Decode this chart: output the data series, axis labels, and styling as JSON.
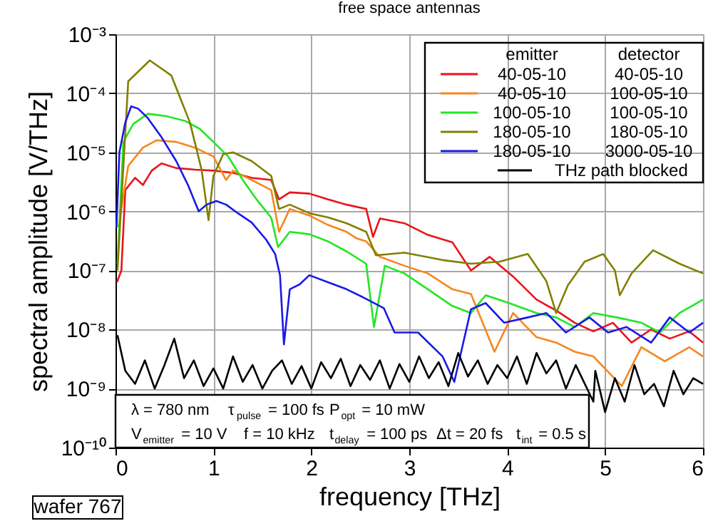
{
  "chart_data": {
    "type": "line",
    "title": "free space antennas",
    "xlabel": "frequency [THz]",
    "ylabel": "spectral amplitude [V/THz]",
    "legend_title": [
      "emitter",
      "detector"
    ],
    "log": "y",
    "grid": true,
    "legend": "top right",
    "line_style": "solid",
    "marker": "none",
    "xlim": [
      0,
      6
    ],
    "xticks": [
      0,
      1,
      2,
      3,
      4,
      5,
      6
    ],
    "ylim": [
      1e-10,
      0.001
    ],
    "yticks": [
      {
        "value": 1e-10,
        "label": "10⁻¹⁰"
      },
      {
        "value": 1e-09,
        "label": "10⁻⁹"
      },
      {
        "value": 1e-08,
        "label": "10⁻⁸"
      },
      {
        "value": 1e-07,
        "label": "10⁻⁷"
      },
      {
        "value": 1e-06,
        "label": "10⁻⁶"
      },
      {
        "value": 1e-05,
        "label": "10⁻⁵"
      },
      {
        "value": 0.0001,
        "label": "10⁻⁴"
      },
      {
        "value": 0.001,
        "label": "10⁻³"
      }
    ],
    "series": [
      {
        "name": [
          "40-05-10",
          "40-05-10"
        ],
        "color": "#e8141a",
        "x": [
          0.015,
          0.06,
          0.1,
          0.2,
          0.28,
          0.37,
          0.47,
          0.62,
          0.81,
          1.0,
          1.2,
          1.39,
          1.59,
          1.67,
          1.78,
          1.98,
          2.17,
          2.36,
          2.56,
          2.63,
          2.7,
          2.95,
          3.19,
          3.44,
          3.63,
          3.82,
          4.06,
          4.3,
          4.5,
          4.69,
          4.88,
          5.08,
          5.27,
          5.47,
          5.66,
          5.86,
          6.0
        ],
        "values": [
          6.3e-08,
          1e-07,
          2.3e-06,
          3.7e-06,
          2.8e-06,
          4.9e-06,
          6.5e-06,
          5.4e-06,
          5.1e-06,
          4.9e-06,
          4.5e-06,
          3.7e-06,
          3.4e-06,
          1.6e-06,
          2.1e-06,
          2e-06,
          1.6e-06,
          1.3e-06,
          1.1e-06,
          3.7e-07,
          7.6e-07,
          6.3e-07,
          4e-07,
          3e-07,
          1e-07,
          1.7e-07,
          7.9e-08,
          3.2e-08,
          2.1e-08,
          1.3e-08,
          9.3e-09,
          1.3e-08,
          6e-09,
          1e-08,
          7e-09,
          9.3e-09,
          6e-09
        ]
      },
      {
        "name": [
          "40-05-10",
          "100-05-10"
        ],
        "color": "#f7861c",
        "x": [
          0.03,
          0.13,
          0.28,
          0.42,
          0.62,
          0.81,
          1.0,
          1.13,
          1.2,
          1.39,
          1.59,
          1.67,
          1.78,
          1.98,
          2.17,
          2.36,
          2.46,
          2.56,
          2.7,
          2.95,
          3.19,
          3.44,
          3.63,
          3.87,
          4.06,
          4.3,
          4.5,
          4.69,
          4.88,
          5.17,
          5.37,
          5.61,
          5.86,
          6.0
        ],
        "values": [
          5.4e-07,
          5.9e-06,
          1.2e-05,
          1.6e-05,
          1.5e-05,
          1.2e-05,
          8.5e-06,
          3.4e-06,
          4.9e-06,
          3.4e-06,
          2.3e-06,
          4.5e-07,
          1.1e-06,
          8.5e-07,
          5.9e-07,
          4.5e-07,
          3.5e-07,
          3.1e-07,
          1.7e-07,
          1.2e-07,
          8.9e-08,
          4.8e-08,
          4e-08,
          4.2e-09,
          1.9e-08,
          7.4e-09,
          6e-09,
          4.2e-09,
          3.5e-09,
          1.1e-09,
          5e-09,
          2.9e-09,
          5e-09,
          3.5e-09
        ]
      },
      {
        "name": [
          "100-05-10",
          "100-05-10"
        ],
        "color": "#22e622",
        "x": [
          0.02,
          0.08,
          0.18,
          0.33,
          0.52,
          0.71,
          0.86,
          1.0,
          1.15,
          1.3,
          1.44,
          1.59,
          1.66,
          1.78,
          1.98,
          2.17,
          2.36,
          2.56,
          2.64,
          2.75,
          2.95,
          3.19,
          3.44,
          3.63,
          3.78,
          4.02,
          4.3,
          4.5,
          4.69,
          4.88,
          5.12,
          5.37,
          5.56,
          5.76,
          6.0
        ],
        "values": [
          1.3e-07,
          1.5e-05,
          3e-05,
          4.5e-05,
          4.1e-05,
          3.4e-05,
          2.5e-05,
          1.5e-05,
          8.5e-06,
          3.4e-06,
          1.6e-06,
          7.8e-07,
          2.5e-07,
          4.5e-07,
          4.1e-07,
          3.1e-07,
          2.1e-07,
          1.3e-07,
          1.1e-08,
          1.2e-07,
          8.9e-08,
          4.8e-08,
          2.5e-08,
          1.9e-08,
          3.8e-08,
          2.8e-08,
          1.9e-08,
          1.6e-08,
          1.1e-08,
          1.9e-08,
          1.6e-08,
          1.3e-08,
          8.9e-09,
          1.9e-08,
          3.2e-08
        ]
      },
      {
        "name": [
          "180-05-10",
          "180-05-10"
        ],
        "color": "#808000",
        "x": [
          0.02,
          0.13,
          0.35,
          0.57,
          0.76,
          0.88,
          0.95,
          1.0,
          1.1,
          1.2,
          1.39,
          1.59,
          1.67,
          1.78,
          1.98,
          2.17,
          2.36,
          2.56,
          2.66,
          2.95,
          3.34,
          3.63,
          3.92,
          4.21,
          4.4,
          4.5,
          4.62,
          4.79,
          4.98,
          5.1,
          5.15,
          5.27,
          5.49,
          5.76,
          6.0
        ],
        "values": [
          1e-07,
          0.00016,
          0.00036,
          0.0002,
          3.2e-05,
          5e-06,
          7.1e-07,
          4e-06,
          9.3e-06,
          1e-05,
          7.1e-06,
          4e-06,
          1.1e-06,
          1.3e-06,
          9.3e-07,
          7.9e-07,
          6.3e-07,
          4.5e-07,
          1.8e-07,
          2e-07,
          1.5e-07,
          1.3e-07,
          1.4e-07,
          1.9e-07,
          6.6e-08,
          1.9e-08,
          5.6e-08,
          1.4e-07,
          1.9e-07,
          1e-07,
          3.8e-08,
          8.9e-08,
          2.2e-07,
          1.3e-07,
          8.9e-08
        ]
      },
      {
        "name": [
          "180-05-10",
          "3000-05-10"
        ],
        "color": "#1a1ae6",
        "x": [
          0.01,
          0.04,
          0.1,
          0.16,
          0.23,
          0.33,
          0.47,
          0.62,
          0.74,
          0.85,
          0.93,
          1.03,
          1.13,
          1.25,
          1.39,
          1.54,
          1.63,
          1.68,
          1.72,
          1.78,
          1.88,
          1.98,
          2.17,
          2.36,
          2.56,
          2.74,
          2.85,
          3.09,
          3.34,
          3.46,
          3.63,
          3.78,
          3.97,
          4.21,
          4.4,
          4.6,
          4.84,
          5.03,
          5.22,
          5.47,
          5.66,
          5.86,
          6.0
        ],
        "values": [
          5.4e-07,
          1e-05,
          3.2e-05,
          6e-05,
          5.5e-05,
          3.8e-05,
          1.8e-05,
          7.1e-06,
          2.8e-06,
          1e-06,
          1.3e-06,
          1.5e-06,
          1.3e-06,
          9.3e-07,
          6.5e-07,
          3.3e-07,
          1.9e-07,
          8.3e-08,
          5.6e-09,
          4.8e-08,
          5.8e-08,
          8.3e-08,
          6.3e-08,
          4.8e-08,
          3.3e-08,
          2.3e-08,
          8.9e-09,
          8.9e-09,
          3.5e-09,
          1.3e-09,
          2.2e-08,
          2.8e-08,
          1.3e-08,
          1.6e-08,
          1.9e-08,
          8.9e-09,
          1.6e-08,
          8.9e-09,
          1.1e-08,
          6e-09,
          1.6e-08,
          8.9e-09,
          1.3e-08
        ]
      },
      {
        "name": "THz path blocked",
        "color": "#000000",
        "x": [
          0.02,
          0.1,
          0.2,
          0.3,
          0.4,
          0.5,
          0.6,
          0.7,
          0.8,
          0.9,
          1.0,
          1.1,
          1.2,
          1.3,
          1.4,
          1.5,
          1.6,
          1.7,
          1.8,
          1.9,
          2.0,
          2.1,
          2.2,
          2.3,
          2.4,
          2.5,
          2.6,
          2.7,
          2.8,
          2.9,
          3.0,
          3.1,
          3.2,
          3.3,
          3.4,
          3.5,
          3.6,
          3.7,
          3.8,
          3.9,
          4.0,
          4.1,
          4.2,
          4.3,
          4.4,
          4.5,
          4.6,
          4.7,
          4.88,
          4.9,
          5.0,
          5.1,
          5.2,
          5.3,
          5.4,
          5.5,
          5.6,
          5.7,
          5.8,
          5.9,
          6.0
        ],
        "values": [
          8e-09,
          2e-09,
          1.2e-09,
          3e-09,
          1e-09,
          2.5e-09,
          7e-09,
          1.5e-09,
          3e-09,
          1.1e-09,
          2.2e-09,
          1e-09,
          3.5e-09,
          1.3e-09,
          2.5e-09,
          1e-09,
          2e-09,
          3e-09,
          1.2e-09,
          2.4e-09,
          1e-09,
          2.8e-09,
          1.5e-09,
          3.2e-09,
          1.1e-09,
          2.5e-09,
          1.4e-09,
          3e-09,
          1e-09,
          2.6e-09,
          1.3e-09,
          3.5e-09,
          1.5e-09,
          2.8e-09,
          1.1e-09,
          4e-09,
          1.6e-09,
          3e-09,
          1.2e-09,
          2.5e-09,
          1.5e-09,
          3.5e-09,
          1.2e-09,
          4e-09,
          1.8e-09,
          3e-09,
          1e-09,
          2.5e-09,
          6e-10,
          2e-09,
          4e-10,
          1.5e-09,
          6e-10,
          2.5e-09,
          8e-10,
          1.2e-09,
          5e-10,
          2e-09,
          8e-10,
          1.5e-09,
          1.2e-09
        ]
      }
    ],
    "annotations": [
      "λ = 780 nm",
      "τ$_{pulse}$ = 100 fs",
      "P$_{opt}$ = 10 mW",
      "V$_{emitter}$ = 10 V",
      "f = 10 kHz",
      "t$_{delay}$ = 100 ps",
      "Δt = 20 fs",
      "t$_{int}$ = 0.5 s",
      "wafer 767"
    ]
  }
}
